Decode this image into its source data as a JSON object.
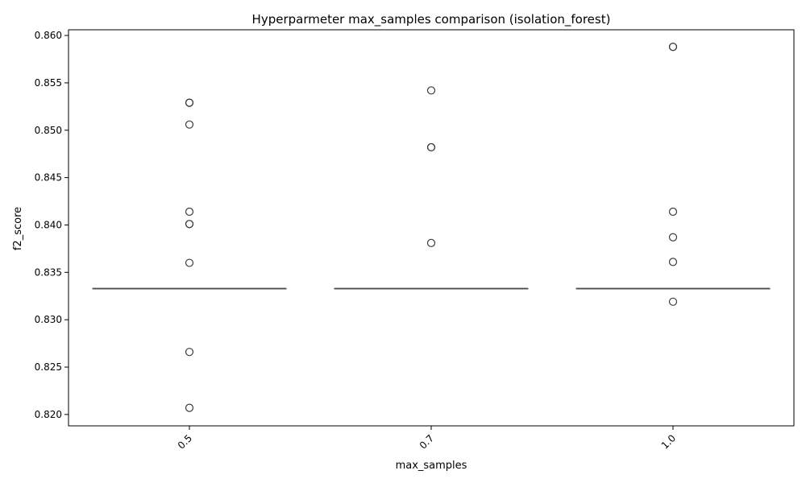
{
  "chart_data": {
    "type": "box",
    "title": "Hyperparmeter max_samples comparison (isolation_forest)",
    "xlabel": "max_samples",
    "ylabel": "f2_score",
    "categories": [
      "0.5",
      "0.7",
      "1.0"
    ],
    "ylim": [
      0.8188,
      0.8606
    ],
    "yticks": [
      "0.820",
      "0.825",
      "0.830",
      "0.835",
      "0.840",
      "0.845",
      "0.850",
      "0.855",
      "0.860"
    ],
    "ytick_values": [
      0.82,
      0.825,
      0.83,
      0.835,
      0.84,
      0.845,
      0.85,
      0.855,
      0.86
    ],
    "grid": false,
    "box_color": "#4d4d4d",
    "groups": [
      {
        "category": "0.5",
        "median": 0.8333,
        "q1": 0.8333,
        "q3": 0.8333,
        "outliers": [
          0.8529,
          0.8529,
          0.8506,
          0.8414,
          0.8401,
          0.8401,
          0.836,
          0.8266,
          0.8207
        ]
      },
      {
        "category": "0.7",
        "median": 0.8333,
        "q1": 0.8333,
        "q3": 0.8333,
        "outliers": [
          0.8542,
          0.8482,
          0.8482,
          0.8381
        ]
      },
      {
        "category": "1.0",
        "median": 0.8333,
        "q1": 0.8333,
        "q3": 0.8333,
        "outliers": [
          0.8588,
          0.8588,
          0.8414,
          0.8387,
          0.8361,
          0.8319
        ]
      }
    ]
  }
}
